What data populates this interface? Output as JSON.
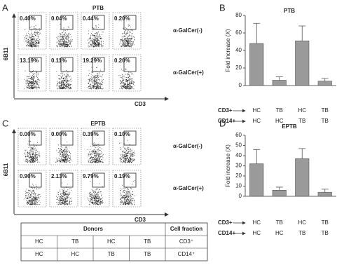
{
  "panels": [
    {
      "letter": "A",
      "title": "PTB",
      "y_label": "6B11",
      "x_label": "CD3",
      "rows": [
        {
          "label": "α-GalCer(-)",
          "gates": [
            "0.40%",
            "0.04%",
            "0.44%",
            "0.20%"
          ]
        },
        {
          "label": "α-GalCer(+)",
          "gates": [
            "13.19%",
            "0.11%",
            "19.29%",
            "0.20%"
          ]
        }
      ]
    },
    {
      "letter": "C",
      "title": "EPTB",
      "y_label": "6B11",
      "x_label": "CD3",
      "rows": [
        {
          "label": "α-GalCer(-)",
          "gates": [
            "0.00%",
            "0.00%",
            "0.39%",
            "0.10%"
          ]
        },
        {
          "label": "α-GalCer(+)",
          "gates": [
            "0.90%",
            "2.13%",
            "9.79%",
            "0.19%"
          ]
        }
      ]
    }
  ],
  "chart_data": [
    {
      "type": "bar",
      "letter": "B",
      "title": "PTB",
      "y_label": "Fold increase (X)",
      "categories": [
        "HC",
        "TB",
        "HC",
        "TB"
      ],
      "category_rows": [
        {
          "name": "CD3+",
          "labels": [
            "HC",
            "TB",
            "HC",
            "TB"
          ]
        },
        {
          "name": "CD14+",
          "labels": [
            "HC",
            "HC",
            "TB",
            "TB"
          ]
        }
      ],
      "values": [
        48,
        6,
        51,
        5
      ],
      "errors": [
        23,
        4,
        17,
        3
      ],
      "color": "#9a9a9a",
      "ylim": [
        0,
        80
      ],
      "yticks": [
        0,
        20,
        40,
        60,
        80
      ]
    },
    {
      "type": "bar",
      "letter": "D",
      "title": "EPTB",
      "y_label": "Fold increase (X)",
      "categories": [
        "HC",
        "TB",
        "HC",
        "TB"
      ],
      "category_rows": [
        {
          "name": "CD3+",
          "labels": [
            "HC",
            "TB",
            "HC",
            "TB"
          ]
        },
        {
          "name": "CD14+",
          "labels": [
            "HC",
            "HC",
            "TB",
            "TB"
          ]
        }
      ],
      "values": [
        32,
        6,
        37,
        4
      ],
      "errors": [
        14,
        3,
        10,
        3
      ],
      "color": "#9a9a9a",
      "ylim": [
        0,
        60
      ],
      "yticks": [
        0,
        10,
        20,
        30,
        40,
        50,
        60
      ]
    }
  ],
  "table": {
    "header": [
      "Donors",
      "Cell fraction"
    ],
    "rows": [
      [
        "HC",
        "TB",
        "HC",
        "TB",
        "CD3⁺"
      ],
      [
        "HC",
        "HC",
        "TB",
        "TB",
        "CD14⁺"
      ]
    ]
  }
}
